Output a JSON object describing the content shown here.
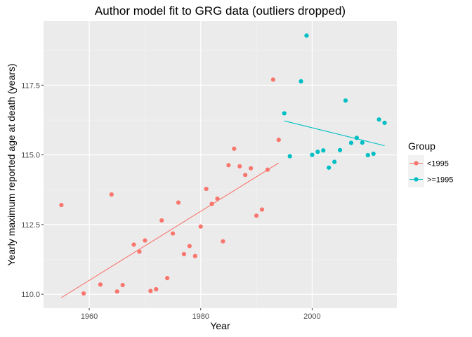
{
  "chart_data": {
    "type": "scatter",
    "title": "Author model fit to GRG data (outliers dropped)",
    "xlabel": "Year",
    "ylabel": "Yearly maximum reported age at death (years)",
    "xlim": [
      1951.8,
      2015.2
    ],
    "ylim": [
      109.5,
      119.8
    ],
    "x_ticks": [
      1960,
      1980,
      2000
    ],
    "x_tick_labels": [
      "1960",
      "1980",
      "2000"
    ],
    "y_ticks": [
      110,
      112.5,
      115,
      117.5
    ],
    "y_tick_labels": [
      "110.0",
      "112.5",
      "115.0",
      "117.5"
    ],
    "grid": true,
    "legend": {
      "title": "Group",
      "placement": "right"
    },
    "series": [
      {
        "name": "<1995",
        "color": "#F8766D",
        "x": [
          1955,
          1959,
          1962,
          1964,
          1965,
          1966,
          1968,
          1969,
          1970,
          1971,
          1972,
          1973,
          1974,
          1975,
          1976,
          1977,
          1978,
          1979,
          1980,
          1981,
          1982,
          1983,
          1984,
          1985,
          1986,
          1987,
          1988,
          1989,
          1990,
          1991,
          1992,
          1993,
          1994
        ],
        "y": [
          113.2,
          110.03,
          110.35,
          113.58,
          110.1,
          110.33,
          111.78,
          111.53,
          111.93,
          110.12,
          110.18,
          112.65,
          110.58,
          112.18,
          113.29,
          111.44,
          111.73,
          111.37,
          112.43,
          113.78,
          113.24,
          113.43,
          111.9,
          114.63,
          115.22,
          114.59,
          114.28,
          114.52,
          112.82,
          113.04,
          114.47,
          117.7,
          115.54
        ],
        "fit": {
          "x": [
            1955,
            1994
          ],
          "y": [
            109.88,
            114.71
          ]
        }
      },
      {
        "name": ">=1995",
        "color": "#00BFC4",
        "x": [
          1995,
          1996,
          1998,
          1999,
          2000,
          2001,
          2002,
          2003,
          2004,
          2005,
          2006,
          2007,
          2008,
          2009,
          2010,
          2011,
          2012,
          2013
        ],
        "y": [
          116.49,
          114.95,
          117.64,
          119.28,
          115.0,
          115.11,
          115.16,
          114.54,
          114.75,
          115.17,
          116.95,
          115.43,
          115.61,
          115.44,
          114.99,
          115.04,
          116.27,
          116.15
        ],
        "fit": {
          "x": [
            1995,
            2013
          ],
          "y": [
            116.22,
            115.33
          ]
        }
      }
    ]
  }
}
